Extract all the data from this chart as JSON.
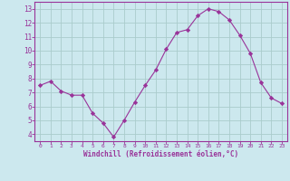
{
  "x": [
    0,
    1,
    2,
    3,
    4,
    5,
    6,
    7,
    8,
    9,
    10,
    11,
    12,
    13,
    14,
    15,
    16,
    17,
    18,
    19,
    20,
    21,
    22,
    23
  ],
  "y": [
    7.5,
    7.8,
    7.1,
    6.8,
    6.8,
    5.5,
    4.8,
    3.8,
    5.0,
    6.3,
    7.5,
    8.6,
    10.1,
    11.3,
    11.5,
    12.5,
    13.0,
    12.8,
    12.2,
    11.1,
    9.8,
    7.7,
    6.6,
    6.2
  ],
  "line_color": "#993399",
  "marker_color": "#993399",
  "bg_color": "#cce8ee",
  "grid_color": "#aacccc",
  "axis_label_color": "#993399",
  "tick_color": "#993399",
  "xlabel": "Windchill (Refroidissement éolien,°C)",
  "xlim": [
    -0.5,
    23.5
  ],
  "ylim": [
    3.5,
    13.5
  ],
  "yticks": [
    4,
    5,
    6,
    7,
    8,
    9,
    10,
    11,
    12,
    13
  ],
  "xticks": [
    0,
    1,
    2,
    3,
    4,
    5,
    6,
    7,
    8,
    9,
    10,
    11,
    12,
    13,
    14,
    15,
    16,
    17,
    18,
    19,
    20,
    21,
    22,
    23
  ],
  "figsize": [
    3.2,
    2.0
  ],
  "dpi": 100
}
